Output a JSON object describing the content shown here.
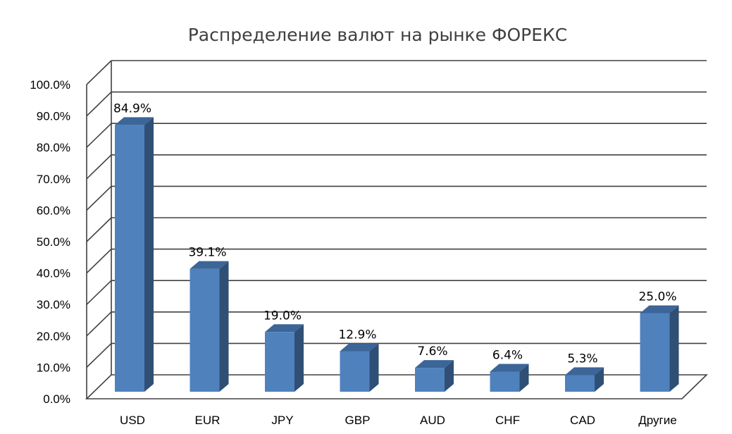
{
  "chart_data": {
    "type": "bar",
    "title": "Распределение валют на рынке ФОРЕКС",
    "categories": [
      "USD",
      "EUR",
      "JPY",
      "GBP",
      "AUD",
      "CHF",
      "CAD",
      "Другие"
    ],
    "values": [
      84.9,
      39.1,
      19.0,
      12.9,
      7.6,
      6.4,
      5.3,
      25.0
    ],
    "data_labels": [
      "84.9%",
      "39.1%",
      "19.0%",
      "12.9%",
      "7.6%",
      "6.4%",
      "5.3%",
      "25.0%"
    ],
    "y_tick_labels": [
      "0.0%",
      "10.0%",
      "20.0%",
      "30.0%",
      "40.0%",
      "50.0%",
      "60.0%",
      "70.0%",
      "80.0%",
      "90.0%",
      "100.0%"
    ],
    "ylim": [
      0,
      100
    ],
    "grid": true,
    "style": "3d-column",
    "colors": {
      "bar_front": "#4f81bd",
      "bar_side": "#2f4f75",
      "bar_top": "#3c6598",
      "grid": "#404040"
    }
  }
}
